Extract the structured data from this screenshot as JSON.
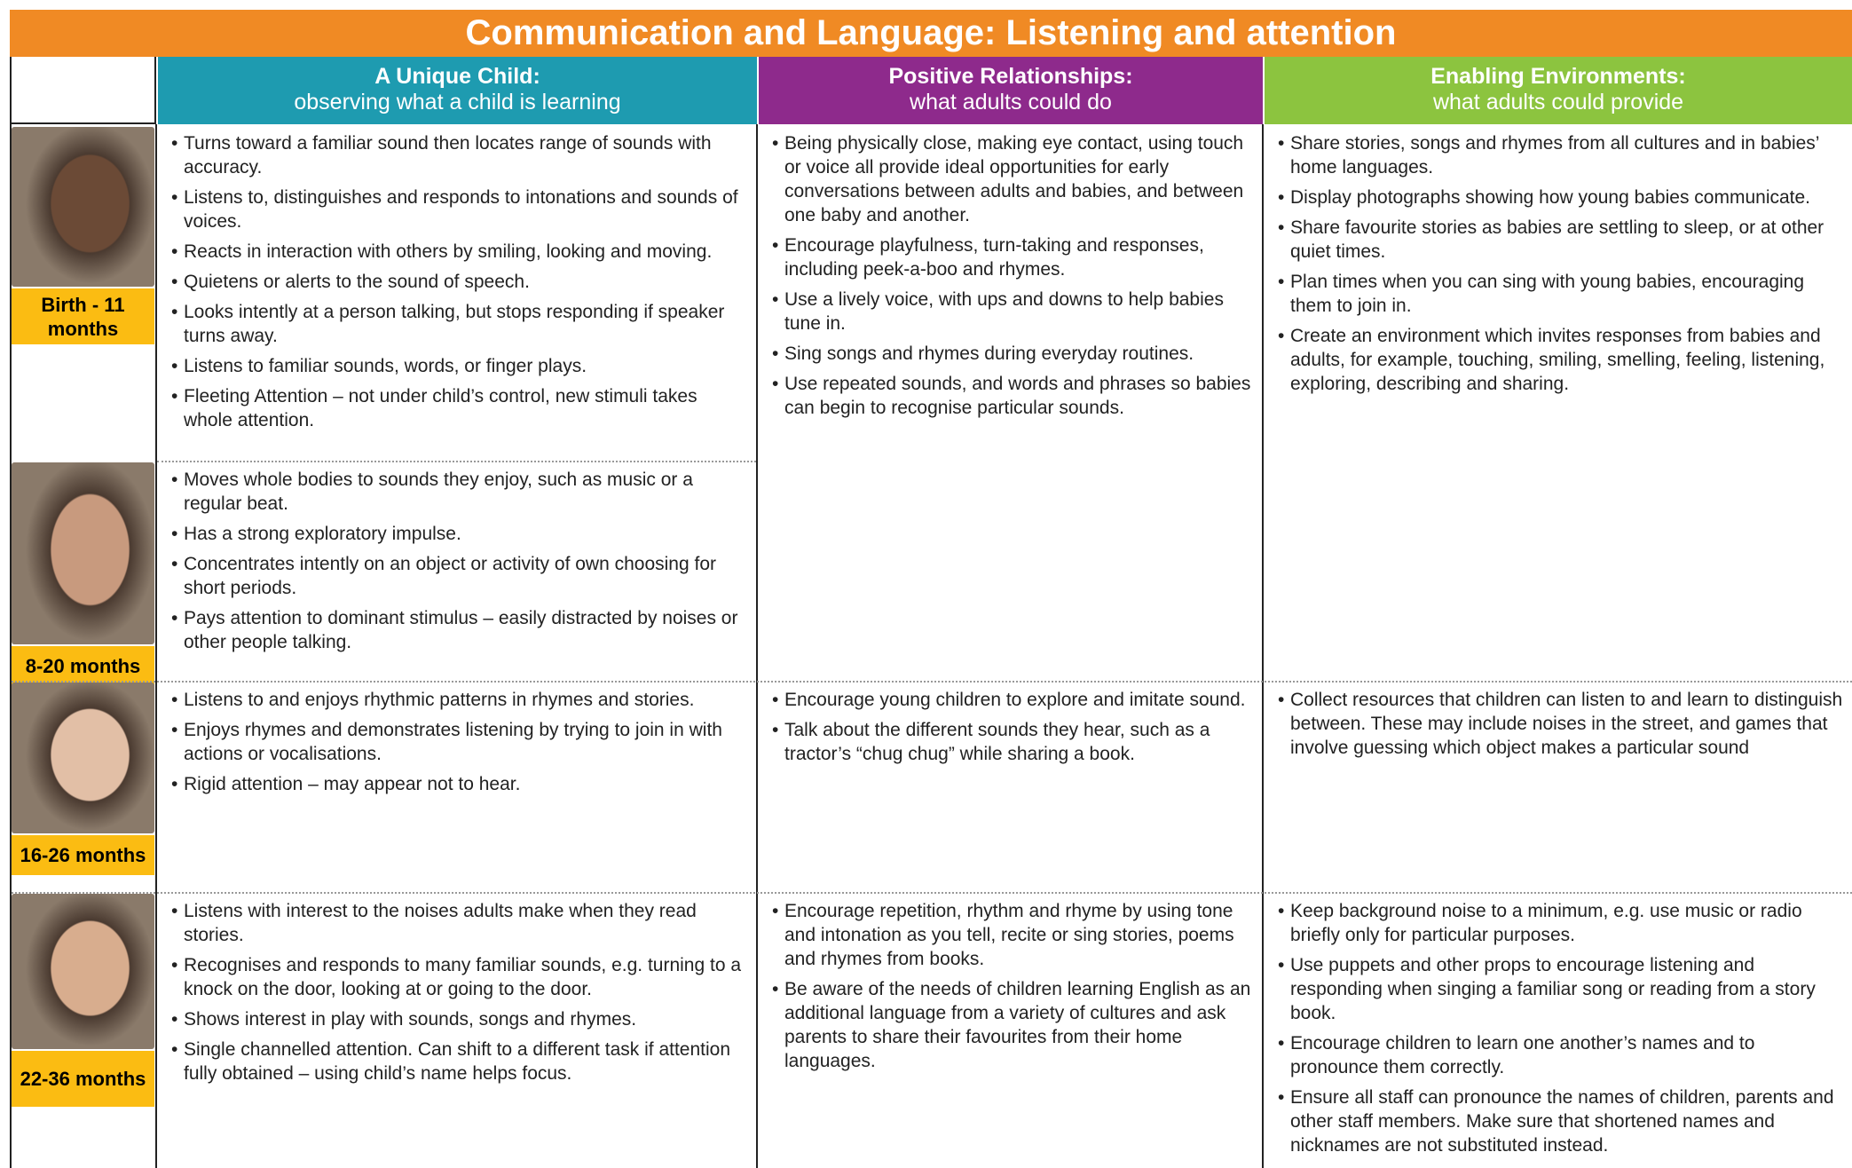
{
  "title": "Communication and Language: Listening and attention",
  "columns": [
    {
      "title": "A Unique Child:",
      "subtitle": "observing what a child is learning"
    },
    {
      "title": "Positive Relationships:",
      "subtitle": "what adults could do"
    },
    {
      "title": "Enabling Environments:",
      "subtitle": "what adults could provide"
    }
  ],
  "age_bands": [
    {
      "label": "Birth - 11 months",
      "points": [
        "Turns toward a familiar sound then locates range of sounds with accuracy.",
        "Listens to, distinguishes and responds to intonations and sounds of voices.",
        "Reacts in interaction with others by smiling, looking and moving.",
        "Quietens or alerts to the sound of speech.",
        "Looks intently at a person talking, but stops responding if speaker turns away.",
        "Listens to familiar sounds, words, or finger plays.",
        "Fleeting Attention – not under child’s control, new stimuli takes whole attention."
      ]
    },
    {
      "label": "8-20 months",
      "points": [
        "Moves whole bodies to sounds they enjoy, such as music or a regular beat.",
        "Has a strong exploratory impulse.",
        "Concentrates intently on an object or activity of own choosing for short periods.",
        "Pays attention to dominant stimulus – easily distracted by noises or other people talking."
      ]
    },
    {
      "label": "16-26 months",
      "points": [
        "Listens to and enjoys rhythmic patterns in rhymes and stories.",
        "Enjoys rhymes and demonstrates listening by trying to join in with actions or vocalisations.",
        "Rigid attention – may appear not to hear."
      ]
    },
    {
      "label": "22-36 months",
      "points": [
        "Listens with interest to the noises adults make when they read stories.",
        "Recognises and responds to many familiar sounds, e.g. turning to a knock on the door, looking at or going to the door.",
        "Shows interest in play with sounds, songs and rhymes.",
        "Single channelled attention. Can shift to a different task if attention fully obtained – using child’s name helps focus."
      ]
    }
  ],
  "relationships": [
    [
      "Being physically close, making eye contact, using touch or voice all provide ideal opportunities for early conversations between adults and babies, and between one baby and another.",
      "Encourage playfulness, turn-taking and responses, including peek-a-boo and rhymes.",
      "Use a lively voice, with ups and downs to help babies tune in.",
      "Sing songs and rhymes during everyday routines.",
      "Use repeated sounds, and words and phrases so babies can begin to recognise particular sounds."
    ],
    [
      "Encourage young children to explore and imitate sound.",
      "Talk about the different sounds they hear, such as a tractor’s “chug chug” while sharing a book."
    ],
    [
      "Encourage repetition, rhythm and rhyme by using tone and intonation as you tell, recite or sing stories, poems and rhymes from books.",
      "Be aware of the needs of children learning English as an additional language from a variety of cultures and ask parents to share their favourites from their home languages."
    ]
  ],
  "environments": [
    [
      "Share stories, songs and rhymes from all cultures and in babies’ home languages.",
      "Display photographs showing how young babies communicate.",
      "Share favourite stories as babies are settling to sleep, or at other quiet times.",
      "Plan times when you can sing with young babies, encouraging them to join in.",
      "Create an environment which invites responses from babies and adults, for example, touching, smiling, smelling, feeling, listening, exploring, describing and sharing."
    ],
    [
      "Collect resources that children can listen to and learn to distinguish between. These may include noises in the street, and games that involve guessing which object makes a particular sound"
    ],
    [
      "Keep background noise to a minimum, e.g. use music or radio briefly only for particular purposes.",
      "Use puppets and other props to encourage listening and responding when singing a familiar song or reading from a story book.",
      "Encourage children to learn one another’s names and to pronounce them correctly.",
      "Ensure all staff can pronounce the names of children, parents and other staff members.  Make sure that shortened names and nicknames are not substituted instead."
    ]
  ]
}
